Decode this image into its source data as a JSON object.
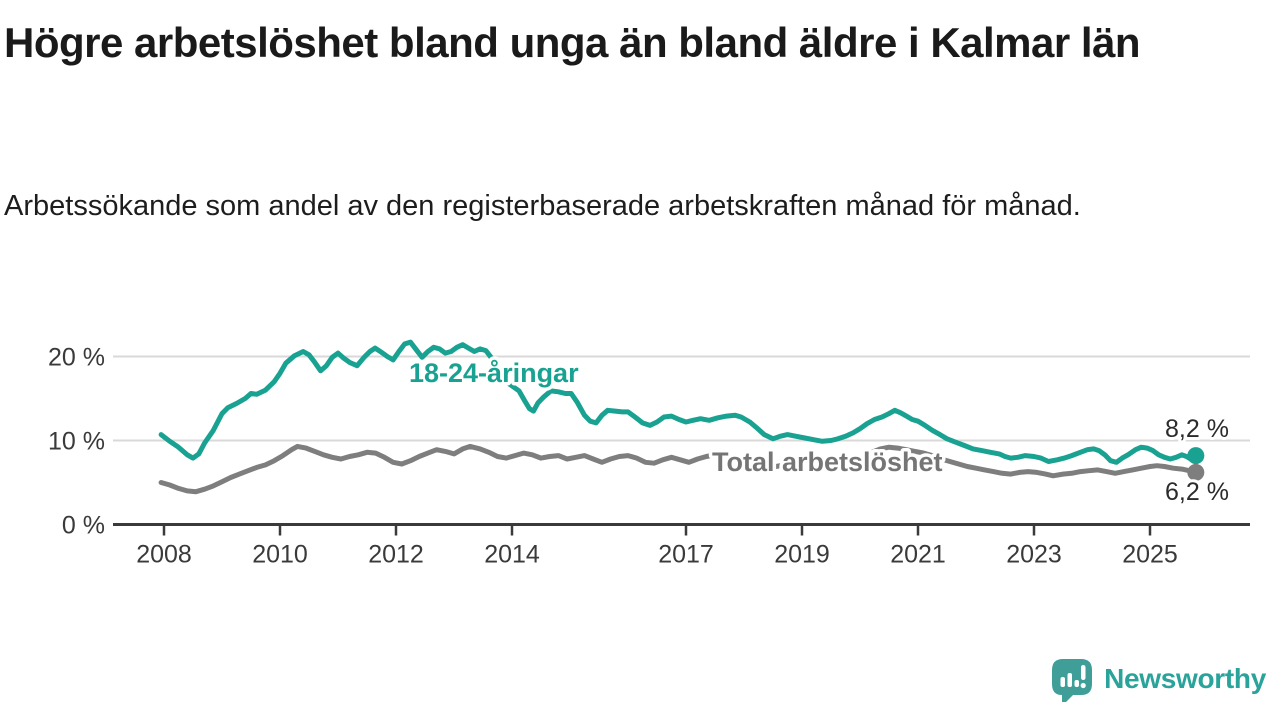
{
  "header": {
    "title": "Högre arbetslöshet bland unga än bland äldre i Kalmar län",
    "subtitle": "Arbetssökande som andel av den registerbaserade arbetskraften månad för månad."
  },
  "chart_data": {
    "type": "line",
    "unit": "%",
    "grid": "horizontal",
    "legend_position": "inline-labels",
    "xlim": [
      2007.9,
      2026.7
    ],
    "ylim": [
      0,
      23
    ],
    "x_axis": {
      "ticks": [
        {
          "value": 2008,
          "label": "2008"
        },
        {
          "value": 2010,
          "label": "2010"
        },
        {
          "value": 2012,
          "label": "2012"
        },
        {
          "value": 2014,
          "label": "2014"
        },
        {
          "value": 2017,
          "label": "2017"
        },
        {
          "value": 2019,
          "label": "2019"
        },
        {
          "value": 2021,
          "label": "2021"
        },
        {
          "value": 2023,
          "label": "2023"
        },
        {
          "value": 2025,
          "label": "2025"
        }
      ]
    },
    "y_axis": {
      "ticks": [
        {
          "value": 0,
          "label": "0 %"
        },
        {
          "value": 10,
          "label": "10 %"
        },
        {
          "value": 20,
          "label": "20 %"
        }
      ]
    },
    "axis_color": "#3a3a3a",
    "grid_color": "#d9d9d9",
    "value_label_color": "#2b2b2b",
    "series": [
      {
        "name": "18-24-åringar",
        "color": "#19a291",
        "end_label": "8,2 %",
        "end_value": 8.2,
        "points": [
          [
            2007.95,
            10.7
          ],
          [
            2008.1,
            9.9
          ],
          [
            2008.25,
            9.2
          ],
          [
            2008.4,
            8.3
          ],
          [
            2008.5,
            7.9
          ],
          [
            2008.6,
            8.4
          ],
          [
            2008.7,
            9.7
          ],
          [
            2008.85,
            11.2
          ],
          [
            2009.0,
            13.2
          ],
          [
            2009.1,
            13.9
          ],
          [
            2009.25,
            14.4
          ],
          [
            2009.4,
            15.0
          ],
          [
            2009.5,
            15.6
          ],
          [
            2009.6,
            15.5
          ],
          [
            2009.75,
            16.0
          ],
          [
            2009.9,
            17.0
          ],
          [
            2010.0,
            18.0
          ],
          [
            2010.1,
            19.2
          ],
          [
            2010.25,
            20.1
          ],
          [
            2010.4,
            20.6
          ],
          [
            2010.5,
            20.2
          ],
          [
            2010.6,
            19.3
          ],
          [
            2010.7,
            18.3
          ],
          [
            2010.8,
            18.9
          ],
          [
            2010.9,
            19.9
          ],
          [
            2011.0,
            20.4
          ],
          [
            2011.1,
            19.8
          ],
          [
            2011.2,
            19.3
          ],
          [
            2011.33,
            18.9
          ],
          [
            2011.45,
            19.9
          ],
          [
            2011.55,
            20.6
          ],
          [
            2011.64,
            21.0
          ],
          [
            2011.75,
            20.5
          ],
          [
            2011.85,
            20.0
          ],
          [
            2011.95,
            19.6
          ],
          [
            2012.05,
            20.6
          ],
          [
            2012.15,
            21.5
          ],
          [
            2012.25,
            21.7
          ],
          [
            2012.35,
            20.8
          ],
          [
            2012.45,
            19.9
          ],
          [
            2012.55,
            20.6
          ],
          [
            2012.65,
            21.1
          ],
          [
            2012.75,
            20.9
          ],
          [
            2012.85,
            20.4
          ],
          [
            2012.95,
            20.6
          ],
          [
            2013.05,
            21.1
          ],
          [
            2013.15,
            21.4
          ],
          [
            2013.25,
            21.0
          ],
          [
            2013.35,
            20.6
          ],
          [
            2013.45,
            20.9
          ],
          [
            2013.55,
            20.7
          ],
          [
            2013.65,
            19.8
          ],
          [
            2013.78,
            18.2
          ],
          [
            2013.9,
            17.0
          ],
          [
            2014.0,
            16.5
          ],
          [
            2014.12,
            15.9
          ],
          [
            2014.22,
            14.7
          ],
          [
            2014.3,
            13.8
          ],
          [
            2014.37,
            13.5
          ],
          [
            2014.45,
            14.5
          ],
          [
            2014.55,
            15.2
          ],
          [
            2014.67,
            15.9
          ],
          [
            2014.8,
            15.8
          ],
          [
            2014.92,
            15.6
          ],
          [
            2015.02,
            15.6
          ],
          [
            2015.12,
            14.6
          ],
          [
            2015.25,
            13.0
          ],
          [
            2015.35,
            12.3
          ],
          [
            2015.45,
            12.1
          ],
          [
            2015.55,
            13.0
          ],
          [
            2015.65,
            13.6
          ],
          [
            2015.78,
            13.5
          ],
          [
            2015.9,
            13.4
          ],
          [
            2016.0,
            13.4
          ],
          [
            2016.12,
            12.8
          ],
          [
            2016.25,
            12.1
          ],
          [
            2016.38,
            11.8
          ],
          [
            2016.5,
            12.2
          ],
          [
            2016.62,
            12.8
          ],
          [
            2016.75,
            12.9
          ],
          [
            2016.88,
            12.5
          ],
          [
            2017.0,
            12.2
          ],
          [
            2017.12,
            12.4
          ],
          [
            2017.25,
            12.6
          ],
          [
            2017.4,
            12.4
          ],
          [
            2017.55,
            12.7
          ],
          [
            2017.7,
            12.9
          ],
          [
            2017.85,
            13.0
          ],
          [
            2017.95,
            12.8
          ],
          [
            2018.1,
            12.2
          ],
          [
            2018.22,
            11.5
          ],
          [
            2018.35,
            10.7
          ],
          [
            2018.5,
            10.2
          ],
          [
            2018.62,
            10.5
          ],
          [
            2018.75,
            10.7
          ],
          [
            2018.9,
            10.5
          ],
          [
            2019.05,
            10.3
          ],
          [
            2019.2,
            10.1
          ],
          [
            2019.35,
            9.9
          ],
          [
            2019.5,
            10.0
          ],
          [
            2019.62,
            10.2
          ],
          [
            2019.75,
            10.5
          ],
          [
            2019.88,
            10.9
          ],
          [
            2020.0,
            11.4
          ],
          [
            2020.12,
            12.0
          ],
          [
            2020.25,
            12.5
          ],
          [
            2020.38,
            12.8
          ],
          [
            2020.5,
            13.2
          ],
          [
            2020.6,
            13.6
          ],
          [
            2020.7,
            13.3
          ],
          [
            2020.8,
            12.9
          ],
          [
            2020.9,
            12.5
          ],
          [
            2021.0,
            12.3
          ],
          [
            2021.12,
            11.8
          ],
          [
            2021.25,
            11.2
          ],
          [
            2021.38,
            10.7
          ],
          [
            2021.5,
            10.2
          ],
          [
            2021.65,
            9.8
          ],
          [
            2021.8,
            9.4
          ],
          [
            2021.95,
            9.0
          ],
          [
            2022.1,
            8.8
          ],
          [
            2022.25,
            8.6
          ],
          [
            2022.4,
            8.4
          ],
          [
            2022.5,
            8.1
          ],
          [
            2022.6,
            7.9
          ],
          [
            2022.72,
            8.0
          ],
          [
            2022.85,
            8.2
          ],
          [
            2023.0,
            8.1
          ],
          [
            2023.12,
            7.9
          ],
          [
            2023.25,
            7.5
          ],
          [
            2023.4,
            7.7
          ],
          [
            2023.52,
            7.9
          ],
          [
            2023.65,
            8.2
          ],
          [
            2023.8,
            8.6
          ],
          [
            2023.92,
            8.9
          ],
          [
            2024.03,
            9.0
          ],
          [
            2024.12,
            8.8
          ],
          [
            2024.22,
            8.3
          ],
          [
            2024.32,
            7.6
          ],
          [
            2024.42,
            7.4
          ],
          [
            2024.52,
            7.9
          ],
          [
            2024.62,
            8.3
          ],
          [
            2024.75,
            8.9
          ],
          [
            2024.85,
            9.2
          ],
          [
            2024.95,
            9.1
          ],
          [
            2025.05,
            8.8
          ],
          [
            2025.15,
            8.3
          ],
          [
            2025.25,
            8.0
          ],
          [
            2025.35,
            7.8
          ],
          [
            2025.45,
            8.0
          ],
          [
            2025.55,
            8.3
          ],
          [
            2025.63,
            8.1
          ],
          [
            2025.7,
            7.8
          ],
          [
            2025.79,
            8.2
          ]
        ]
      },
      {
        "name": "Total arbetslöshet",
        "color": "#7e7e7e",
        "label_color": "#757575",
        "end_label": "6,2 %",
        "end_value": 6.2,
        "points": [
          [
            2007.95,
            5.0
          ],
          [
            2008.1,
            4.7
          ],
          [
            2008.25,
            4.3
          ],
          [
            2008.4,
            4.0
          ],
          [
            2008.55,
            3.9
          ],
          [
            2008.7,
            4.2
          ],
          [
            2008.85,
            4.6
          ],
          [
            2009.0,
            5.1
          ],
          [
            2009.15,
            5.6
          ],
          [
            2009.3,
            6.0
          ],
          [
            2009.45,
            6.4
          ],
          [
            2009.6,
            6.8
          ],
          [
            2009.75,
            7.1
          ],
          [
            2009.9,
            7.6
          ],
          [
            2010.05,
            8.2
          ],
          [
            2010.2,
            8.9
          ],
          [
            2010.3,
            9.3
          ],
          [
            2010.45,
            9.1
          ],
          [
            2010.6,
            8.7
          ],
          [
            2010.75,
            8.3
          ],
          [
            2010.9,
            8.0
          ],
          [
            2011.05,
            7.8
          ],
          [
            2011.2,
            8.1
          ],
          [
            2011.35,
            8.3
          ],
          [
            2011.5,
            8.6
          ],
          [
            2011.65,
            8.5
          ],
          [
            2011.8,
            8.0
          ],
          [
            2011.95,
            7.4
          ],
          [
            2012.1,
            7.2
          ],
          [
            2012.25,
            7.6
          ],
          [
            2012.4,
            8.1
          ],
          [
            2012.55,
            8.5
          ],
          [
            2012.7,
            8.9
          ],
          [
            2012.85,
            8.7
          ],
          [
            2013.0,
            8.4
          ],
          [
            2013.15,
            9.0
          ],
          [
            2013.28,
            9.3
          ],
          [
            2013.45,
            9.0
          ],
          [
            2013.6,
            8.6
          ],
          [
            2013.75,
            8.1
          ],
          [
            2013.9,
            7.9
          ],
          [
            2014.05,
            8.2
          ],
          [
            2014.2,
            8.5
          ],
          [
            2014.35,
            8.3
          ],
          [
            2014.5,
            7.9
          ],
          [
            2014.65,
            8.1
          ],
          [
            2014.8,
            8.2
          ],
          [
            2014.95,
            7.8
          ],
          [
            2015.1,
            8.0
          ],
          [
            2015.25,
            8.2
          ],
          [
            2015.4,
            7.8
          ],
          [
            2015.55,
            7.4
          ],
          [
            2015.7,
            7.8
          ],
          [
            2015.85,
            8.1
          ],
          [
            2016.0,
            8.2
          ],
          [
            2016.15,
            7.9
          ],
          [
            2016.3,
            7.4
          ],
          [
            2016.45,
            7.3
          ],
          [
            2016.6,
            7.7
          ],
          [
            2016.75,
            8.0
          ],
          [
            2016.9,
            7.7
          ],
          [
            2017.05,
            7.4
          ],
          [
            2017.2,
            7.8
          ],
          [
            2017.35,
            8.1
          ],
          [
            2017.5,
            8.3
          ],
          [
            2017.65,
            8.1
          ],
          [
            2017.8,
            7.9
          ],
          [
            2017.95,
            7.7
          ],
          [
            2018.1,
            7.5
          ],
          [
            2018.25,
            7.2
          ],
          [
            2018.4,
            7.0
          ],
          [
            2018.55,
            6.9
          ],
          [
            2018.7,
            7.1
          ],
          [
            2018.85,
            7.2
          ],
          [
            2019.0,
            7.0
          ],
          [
            2019.15,
            6.8
          ],
          [
            2019.3,
            6.6
          ],
          [
            2019.45,
            6.7
          ],
          [
            2019.6,
            6.8
          ],
          [
            2019.75,
            7.0
          ],
          [
            2019.9,
            7.3
          ],
          [
            2020.05,
            7.7
          ],
          [
            2020.2,
            8.6
          ],
          [
            2020.35,
            9.0
          ],
          [
            2020.5,
            9.2
          ],
          [
            2020.65,
            9.1
          ],
          [
            2020.8,
            8.9
          ],
          [
            2020.95,
            8.7
          ],
          [
            2021.1,
            8.5
          ],
          [
            2021.25,
            8.2
          ],
          [
            2021.4,
            7.8
          ],
          [
            2021.55,
            7.5
          ],
          [
            2021.7,
            7.2
          ],
          [
            2021.85,
            6.9
          ],
          [
            2022.0,
            6.7
          ],
          [
            2022.15,
            6.5
          ],
          [
            2022.3,
            6.3
          ],
          [
            2022.45,
            6.1
          ],
          [
            2022.6,
            6.0
          ],
          [
            2022.75,
            6.2
          ],
          [
            2022.9,
            6.3
          ],
          [
            2023.05,
            6.2
          ],
          [
            2023.2,
            6.0
          ],
          [
            2023.33,
            5.8
          ],
          [
            2023.5,
            6.0
          ],
          [
            2023.65,
            6.1
          ],
          [
            2023.8,
            6.3
          ],
          [
            2023.95,
            6.4
          ],
          [
            2024.1,
            6.5
          ],
          [
            2024.25,
            6.3
          ],
          [
            2024.4,
            6.1
          ],
          [
            2024.55,
            6.3
          ],
          [
            2024.7,
            6.5
          ],
          [
            2024.85,
            6.7
          ],
          [
            2025.0,
            6.9
          ],
          [
            2025.12,
            7.0
          ],
          [
            2025.25,
            6.9
          ],
          [
            2025.4,
            6.7
          ],
          [
            2025.55,
            6.6
          ],
          [
            2025.68,
            6.4
          ],
          [
            2025.79,
            6.2
          ]
        ]
      }
    ]
  },
  "branding": {
    "logo_text": "Newsworthy",
    "logo_color": "#3f9f98",
    "logo_text_color": "#2aa39a"
  }
}
